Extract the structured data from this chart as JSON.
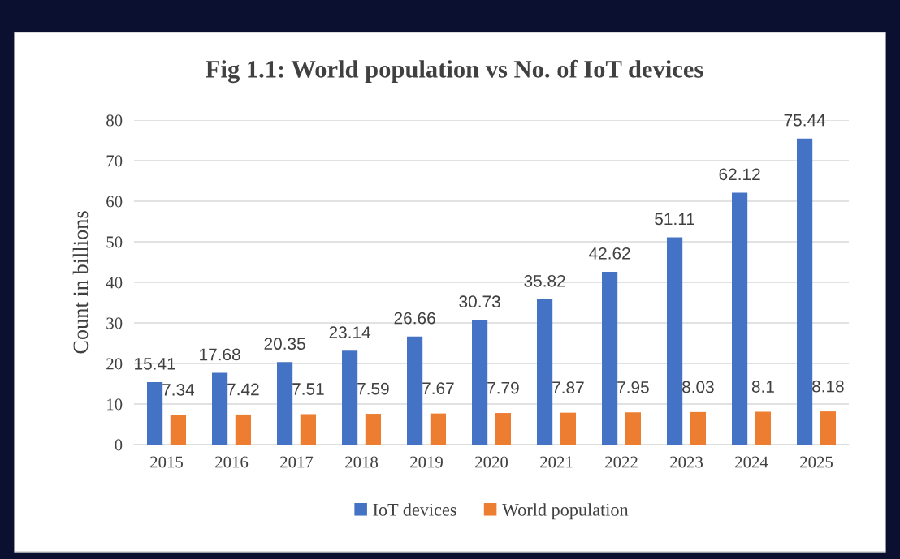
{
  "chart_data": {
    "type": "bar",
    "title": "Fig 1.1: World population vs No. of IoT devices",
    "ylabel": "Count in billions",
    "categories": [
      "2015",
      "2016",
      "2017",
      "2018",
      "2019",
      "2020",
      "2021",
      "2022",
      "2023",
      "2024",
      "2025"
    ],
    "series": [
      {
        "name": "IoT devices",
        "color": "#4472c4",
        "values": [
          15.41,
          17.68,
          20.35,
          23.14,
          26.66,
          30.73,
          35.82,
          42.62,
          51.11,
          62.12,
          75.44
        ]
      },
      {
        "name": "World population",
        "color": "#ed7d31",
        "values": [
          7.34,
          7.42,
          7.51,
          7.59,
          7.67,
          7.79,
          7.87,
          7.95,
          8.03,
          8.1,
          8.18
        ]
      }
    ],
    "ylim": [
      0,
      80
    ],
    "yticks": [
      0,
      10,
      20,
      30,
      40,
      50,
      60,
      70,
      80
    ],
    "grid": "y",
    "legend": "bottom",
    "data_labels": true
  }
}
